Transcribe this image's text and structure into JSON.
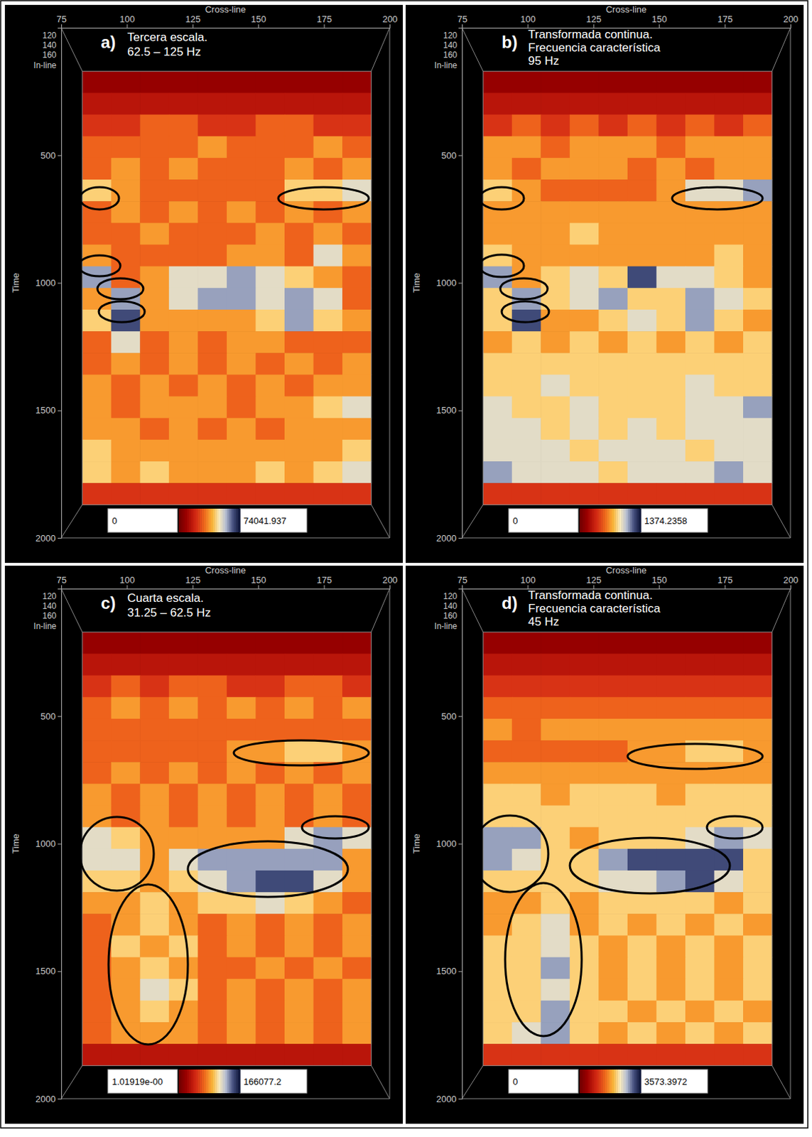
{
  "chart_data": [
    {
      "type": "heatmap",
      "panel_label": "a)",
      "title": [
        "Tercera escala.",
        "62.5 – 125 Hz"
      ],
      "xlabel": "Cross-line",
      "ylabel": "Time",
      "inline_label": "In-line",
      "inline_ticks": [
        120,
        140,
        160
      ],
      "xlim": [
        75,
        200
      ],
      "xticks": [
        75,
        100,
        125,
        150,
        175,
        200
      ],
      "ylim": [
        0,
        2000
      ],
      "yticks": [
        500,
        1000,
        1500,
        2000
      ],
      "x": [
        88.5,
        99.5,
        110.5,
        121.5,
        132.5,
        143.5,
        154.5,
        165.5,
        176.5,
        187.5
      ],
      "y": [
        212.5,
        297.5,
        382.5,
        467.5,
        552.5,
        637.5,
        722.5,
        807.5,
        892.5,
        977.5,
        1062.5,
        1147.5,
        1232.5,
        1317.5,
        1402.5,
        1487.5,
        1572.5,
        1657.5,
        1742.5,
        1827.5
      ],
      "values": [
        [
          7400,
          7400,
          7400,
          7400,
          7400,
          7400,
          7400,
          7400,
          7400,
          7400
        ],
        [
          14800,
          14800,
          14800,
          14800,
          14800,
          14800,
          14800,
          14800,
          14800,
          14800
        ],
        [
          22200,
          22200,
          29600,
          29600,
          22200,
          22200,
          29600,
          29600,
          22200,
          22200
        ],
        [
          29600,
          29600,
          29600,
          29600,
          37000,
          29600,
          29600,
          29600,
          37000,
          29600
        ],
        [
          29600,
          37000,
          29600,
          37000,
          29600,
          29600,
          29600,
          37000,
          29600,
          37000
        ],
        [
          44400,
          37000,
          29600,
          29600,
          29600,
          29600,
          29600,
          44400,
          44400,
          51800
        ],
        [
          29600,
          37000,
          29600,
          37000,
          29600,
          37000,
          29600,
          37000,
          29600,
          37000
        ],
        [
          29600,
          29600,
          37000,
          29600,
          29600,
          29600,
          37000,
          29600,
          37000,
          29600
        ],
        [
          37000,
          29600,
          29600,
          29600,
          29600,
          37000,
          37000,
          29600,
          51800,
          37000
        ],
        [
          59200,
          29600,
          37000,
          51800,
          51800,
          59200,
          51800,
          44400,
          37000,
          29600
        ],
        [
          37000,
          59200,
          37000,
          51800,
          59200,
          59200,
          51800,
          59200,
          51800,
          29600
        ],
        [
          44400,
          66600,
          37000,
          37000,
          37000,
          37000,
          44400,
          59200,
          44400,
          37000
        ],
        [
          29600,
          51800,
          29600,
          37000,
          29600,
          37000,
          37000,
          29600,
          29600,
          29600
        ],
        [
          29600,
          37000,
          29600,
          37000,
          29600,
          37000,
          29600,
          37000,
          29600,
          37000
        ],
        [
          37000,
          29600,
          37000,
          29600,
          37000,
          29600,
          37000,
          29600,
          37000,
          37000
        ],
        [
          37000,
          29600,
          37000,
          37000,
          37000,
          29600,
          37000,
          37000,
          44400,
          51800
        ],
        [
          37000,
          37000,
          29600,
          37000,
          29600,
          37000,
          29600,
          37000,
          37000,
          37000
        ],
        [
          44400,
          37000,
          37000,
          37000,
          37000,
          37000,
          37000,
          37000,
          37000,
          44400
        ],
        [
          44400,
          37000,
          44400,
          37000,
          37000,
          37000,
          44400,
          37000,
          44400,
          51800
        ],
        [
          22200,
          22200,
          22200,
          22200,
          22200,
          22200,
          22200,
          22200,
          22200,
          22200
        ]
      ],
      "colorbar": {
        "range": [
          0,
          74041.937
        ],
        "ticks": [
          0,
          74041.937
        ]
      }
    },
    {
      "type": "heatmap",
      "panel_label": "b)",
      "title": [
        "Transformada continua.",
        "Frecuencia característica",
        "95 Hz"
      ],
      "xlabel": "Cross-line",
      "ylabel": "Time",
      "inline_label": "In-line",
      "inline_ticks": [
        120,
        140,
        160
      ],
      "xlim": [
        75,
        200
      ],
      "xticks": [
        75,
        100,
        125,
        150,
        175,
        200
      ],
      "ylim": [
        0,
        2000
      ],
      "yticks": [
        500,
        1000,
        1500,
        2000
      ],
      "x": [
        88.5,
        99.5,
        110.5,
        121.5,
        132.5,
        143.5,
        154.5,
        165.5,
        176.5,
        187.5
      ],
      "y": [
        212.5,
        297.5,
        382.5,
        467.5,
        552.5,
        637.5,
        722.5,
        807.5,
        892.5,
        977.5,
        1062.5,
        1147.5,
        1232.5,
        1317.5,
        1402.5,
        1487.5,
        1572.5,
        1657.5,
        1742.5,
        1827.5
      ],
      "values": [
        [
          137,
          137,
          137,
          137,
          137,
          137,
          137,
          137,
          137,
          137
        ],
        [
          275,
          275,
          275,
          275,
          275,
          275,
          275,
          275,
          275,
          275
        ],
        [
          412,
          550,
          412,
          550,
          412,
          550,
          412,
          550,
          412,
          550
        ],
        [
          687,
          687,
          550,
          687,
          687,
          687,
          550,
          687,
          687,
          687
        ],
        [
          687,
          550,
          687,
          687,
          687,
          550,
          687,
          550,
          687,
          687
        ],
        [
          824,
          687,
          550,
          550,
          550,
          550,
          687,
          962,
          962,
          1099
        ],
        [
          687,
          687,
          687,
          687,
          687,
          687,
          687,
          687,
          687,
          687
        ],
        [
          687,
          687,
          687,
          824,
          687,
          687,
          687,
          687,
          687,
          687
        ],
        [
          824,
          687,
          687,
          687,
          687,
          687,
          687,
          687,
          824,
          687
        ],
        [
          1099,
          687,
          824,
          962,
          824,
          1237,
          962,
          962,
          824,
          687
        ],
        [
          824,
          1099,
          824,
          962,
          1099,
          824,
          824,
          1099,
          962,
          824
        ],
        [
          824,
          1237,
          687,
          687,
          824,
          962,
          824,
          1099,
          824,
          687
        ],
        [
          687,
          824,
          687,
          824,
          687,
          824,
          687,
          824,
          687,
          824
        ],
        [
          824,
          824,
          824,
          824,
          824,
          824,
          824,
          824,
          824,
          824
        ],
        [
          824,
          824,
          962,
          824,
          824,
          824,
          824,
          962,
          824,
          824
        ],
        [
          962,
          824,
          824,
          962,
          824,
          824,
          824,
          962,
          962,
          1099
        ],
        [
          962,
          962,
          824,
          962,
          824,
          962,
          824,
          962,
          962,
          962
        ],
        [
          962,
          962,
          962,
          824,
          962,
          962,
          962,
          824,
          962,
          962
        ],
        [
          1099,
          962,
          962,
          962,
          824,
          962,
          962,
          962,
          1099,
          962
        ],
        [
          412,
          412,
          412,
          412,
          412,
          412,
          412,
          412,
          412,
          412
        ]
      ],
      "colorbar": {
        "range": [
          0,
          1374.2358
        ],
        "ticks": [
          0,
          1374.2358
        ]
      }
    },
    {
      "type": "heatmap",
      "panel_label": "c)",
      "title": [
        "Cuarta escala.",
        "31.25 – 62.5 Hz"
      ],
      "xlabel": "Cross-line",
      "ylabel": "Time",
      "inline_label": "In-line",
      "inline_ticks": [
        120,
        140,
        160
      ],
      "xlim": [
        75,
        200
      ],
      "xticks": [
        75,
        100,
        125,
        150,
        175,
        200
      ],
      "ylim": [
        0,
        2000
      ],
      "yticks": [
        500,
        1000,
        1500,
        2000
      ],
      "x": [
        88.5,
        99.5,
        110.5,
        121.5,
        132.5,
        143.5,
        154.5,
        165.5,
        176.5,
        187.5
      ],
      "y": [
        212.5,
        297.5,
        382.5,
        467.5,
        552.5,
        637.5,
        722.5,
        807.5,
        892.5,
        977.5,
        1062.5,
        1147.5,
        1232.5,
        1317.5,
        1402.5,
        1487.5,
        1572.5,
        1657.5,
        1742.5,
        1827.5
      ],
      "values": [
        [
          16600,
          16600,
          16600,
          16600,
          16600,
          16600,
          16600,
          16600,
          16600,
          16600
        ],
        [
          33200,
          33200,
          33200,
          33200,
          33200,
          33200,
          33200,
          33200,
          33200,
          33200
        ],
        [
          49800,
          66400,
          49800,
          66400,
          66400,
          49800,
          49800,
          66400,
          66400,
          49800
        ],
        [
          66400,
          83000,
          66400,
          83000,
          66400,
          83000,
          66400,
          83000,
          66400,
          83000
        ],
        [
          66400,
          66400,
          66400,
          66400,
          66400,
          66400,
          66400,
          66400,
          66400,
          66400
        ],
        [
          66400,
          66400,
          66400,
          66400,
          66400,
          83000,
          83000,
          99600,
          99600,
          83000
        ],
        [
          66400,
          83000,
          66400,
          83000,
          66400,
          83000,
          66400,
          83000,
          66400,
          83000
        ],
        [
          83000,
          66400,
          83000,
          66400,
          83000,
          66400,
          83000,
          66400,
          83000,
          66400
        ],
        [
          83000,
          66400,
          83000,
          66400,
          83000,
          66400,
          83000,
          66400,
          83000,
          66400
        ],
        [
          116200,
          99600,
          83000,
          83000,
          83000,
          83000,
          83000,
          116200,
          132900,
          116200
        ],
        [
          116200,
          116200,
          83000,
          116200,
          132900,
          132900,
          132900,
          132900,
          132900,
          83000
        ],
        [
          99600,
          99600,
          83000,
          99600,
          116200,
          132900,
          149500,
          149500,
          116200,
          83000
        ],
        [
          83000,
          83000,
          99600,
          83000,
          99600,
          99600,
          116200,
          99600,
          83000,
          66400
        ],
        [
          66400,
          83000,
          99600,
          83000,
          66400,
          83000,
          66400,
          83000,
          66400,
          83000
        ],
        [
          66400,
          99600,
          83000,
          99600,
          66400,
          83000,
          66400,
          83000,
          66400,
          83000
        ],
        [
          66400,
          83000,
          99600,
          83000,
          66400,
          66400,
          83000,
          66400,
          83000,
          66400
        ],
        [
          66400,
          83000,
          116200,
          99600,
          66400,
          83000,
          66400,
          83000,
          66400,
          83000
        ],
        [
          66400,
          83000,
          99600,
          83000,
          66400,
          83000,
          66400,
          83000,
          66400,
          83000
        ],
        [
          66400,
          83000,
          83000,
          83000,
          66400,
          83000,
          66400,
          83000,
          66400,
          83000
        ],
        [
          33200,
          33200,
          33200,
          33200,
          33200,
          33200,
          33200,
          33200,
          33200,
          33200
        ]
      ],
      "colorbar": {
        "range": [
          1.01919,
          166077.2
        ],
        "ticks": [
          {
            "value": 1.01919,
            "label": "1.01919e-00"
          },
          166077.2
        ]
      }
    },
    {
      "type": "heatmap",
      "panel_label": "d)",
      "title": [
        "Transformada continua.",
        "Frecuencia característica",
        "45 Hz"
      ],
      "xlabel": "Cross-line",
      "ylabel": "Time",
      "inline_label": "In-line",
      "inline_ticks": [
        120,
        140,
        160
      ],
      "xlim": [
        75,
        200
      ],
      "xticks": [
        75,
        100,
        125,
        150,
        175,
        200
      ],
      "ylim": [
        0,
        2000
      ],
      "yticks": [
        500,
        1000,
        1500,
        2000
      ],
      "x": [
        88.5,
        99.5,
        110.5,
        121.5,
        132.5,
        143.5,
        154.5,
        165.5,
        176.5,
        187.5
      ],
      "y": [
        212.5,
        297.5,
        382.5,
        467.5,
        552.5,
        637.5,
        722.5,
        807.5,
        892.5,
        977.5,
        1062.5,
        1147.5,
        1232.5,
        1317.5,
        1402.5,
        1487.5,
        1572.5,
        1657.5,
        1742.5,
        1827.5
      ],
      "values": [
        [
          357,
          357,
          357,
          357,
          357,
          357,
          357,
          357,
          357,
          357
        ],
        [
          715,
          715,
          715,
          715,
          715,
          715,
          715,
          715,
          715,
          715
        ],
        [
          1072,
          1072,
          1072,
          1072,
          1072,
          1072,
          1072,
          1072,
          1072,
          1072
        ],
        [
          1429,
          1429,
          1429,
          1429,
          1429,
          1429,
          1429,
          1429,
          1429,
          1429
        ],
        [
          1787,
          1429,
          1787,
          1787,
          1787,
          1787,
          1787,
          1787,
          1787,
          1787
        ],
        [
          1429,
          1429,
          1429,
          1429,
          1429,
          1787,
          1787,
          2144,
          2144,
          1787
        ],
        [
          1787,
          1787,
          1787,
          1787,
          1787,
          1787,
          1787,
          1787,
          1787,
          1787
        ],
        [
          2144,
          2144,
          1787,
          2144,
          2144,
          2144,
          1787,
          2144,
          2144,
          2144
        ],
        [
          2144,
          2144,
          2144,
          2144,
          2144,
          2144,
          2144,
          2144,
          2144,
          2144
        ],
        [
          2858,
          2858,
          2144,
          1787,
          2144,
          2144,
          2144,
          2501,
          2858,
          2501
        ],
        [
          2858,
          2501,
          2144,
          2144,
          2858,
          3216,
          3216,
          3216,
          3216,
          2144
        ],
        [
          2144,
          2144,
          2144,
          2144,
          2501,
          2501,
          2858,
          3216,
          2501,
          2144
        ],
        [
          1787,
          1787,
          2144,
          1787,
          2144,
          2144,
          2144,
          2144,
          1787,
          2144
        ],
        [
          1787,
          2144,
          2501,
          1787,
          2144,
          1787,
          2144,
          1787,
          2144,
          1787
        ],
        [
          2144,
          2144,
          2501,
          2144,
          1787,
          2144,
          1787,
          2144,
          1787,
          2144
        ],
        [
          2144,
          2144,
          2858,
          2144,
          1787,
          2144,
          1787,
          2144,
          1787,
          2144
        ],
        [
          2144,
          2144,
          2501,
          2144,
          1787,
          2144,
          1787,
          2144,
          1787,
          2144
        ],
        [
          2144,
          2144,
          2858,
          2144,
          2144,
          1787,
          2144,
          1787,
          2144,
          1787
        ],
        [
          2144,
          2501,
          2858,
          2144,
          1787,
          2144,
          1787,
          2144,
          1787,
          2144
        ],
        [
          1072,
          1072,
          1072,
          1072,
          1072,
          1072,
          1072,
          1072,
          1072,
          1072
        ]
      ],
      "colorbar": {
        "range": [
          0,
          3573.3972
        ],
        "ticks": [
          0,
          3573.3972
        ]
      }
    }
  ]
}
